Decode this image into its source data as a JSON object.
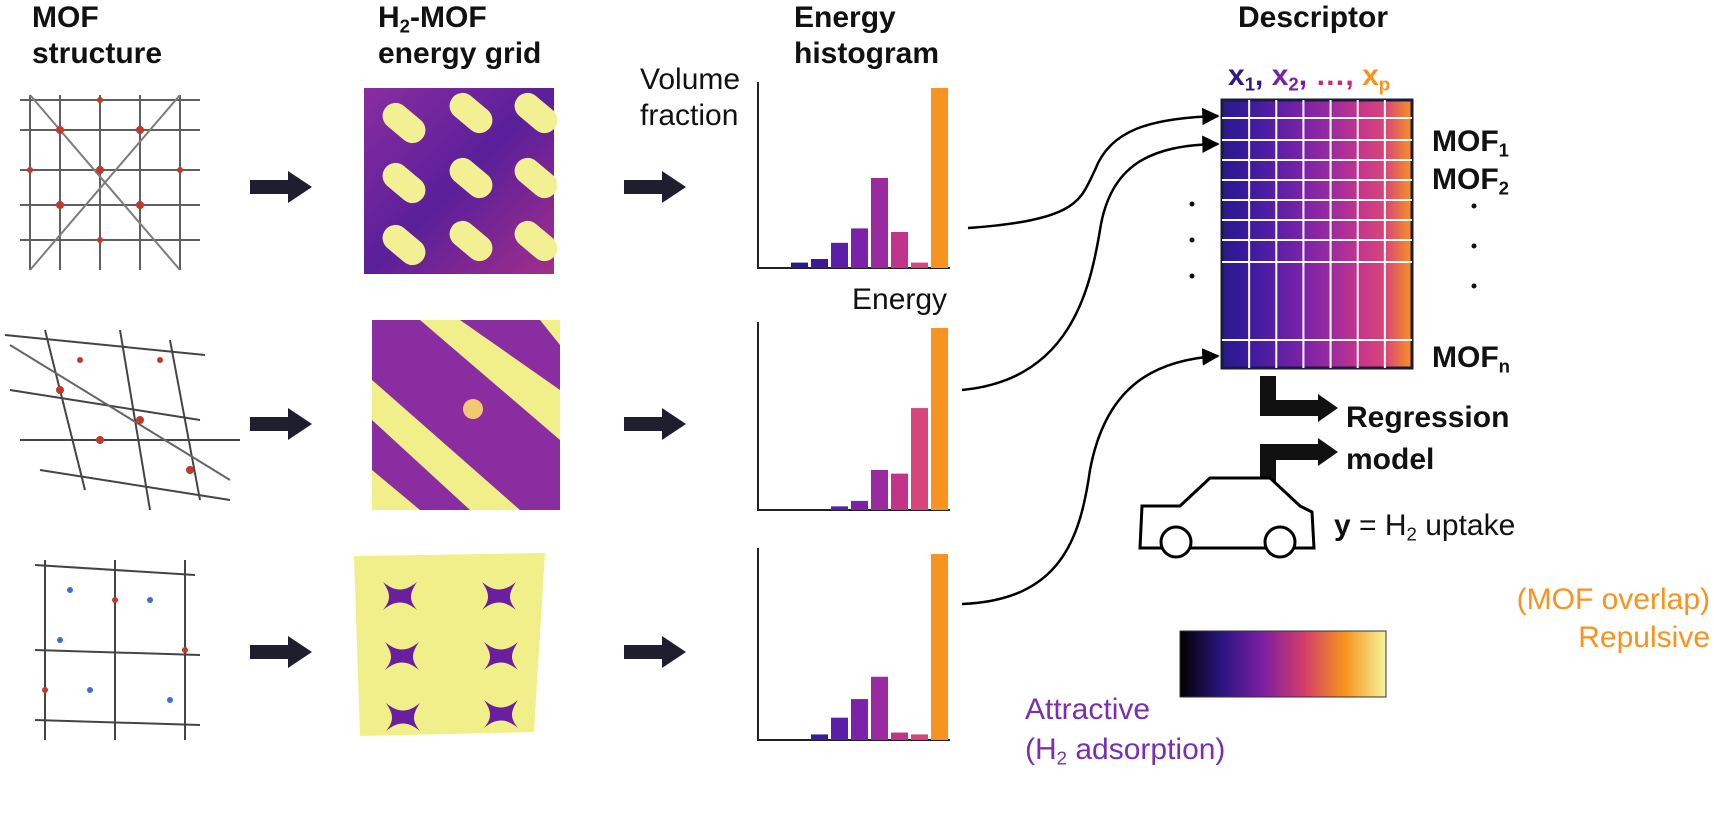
{
  "columns": {
    "mof_structure": [
      "MOF",
      "structure"
    ],
    "energy_grid": [
      "H",
      "2",
      "-MOF",
      "energy grid"
    ],
    "histogram": [
      "Energy",
      "histogram"
    ],
    "descriptor": "Descriptor"
  },
  "histogram_axes": {
    "ylabel": [
      "Volume",
      "fraction"
    ],
    "xlabel": "Energy"
  },
  "features": [
    {
      "base": "x",
      "sub": "1",
      "sep": ",",
      "color": "#2a1a8c"
    },
    {
      "base": "x",
      "sub": "2",
      "sep": ",",
      "color": "#7a20a8"
    },
    {
      "base": "…",
      "sub": "",
      "sep": ",",
      "color": "#c8287a"
    },
    {
      "base": "x",
      "sub": "p",
      "sep": "",
      "color": "#f7931e"
    }
  ],
  "mof_rows": [
    {
      "base": "MOF",
      "sub": "1"
    },
    {
      "base": "MOF",
      "sub": "2"
    },
    {
      "base": "MOF",
      "sub": "n"
    }
  ],
  "regression": [
    "Regression",
    "model"
  ],
  "car_label": {
    "base": "H",
    "sub": "2"
  },
  "target": {
    "bold": "y",
    "text": " = H",
    "sub": "2",
    "tail": " uptake"
  },
  "colorbar": {
    "top_left": "(MOF overlap)",
    "top_right": "Repulsive",
    "bottom_left": "Attractive",
    "bottom_right": [
      "(H",
      "2",
      " adsorption)"
    ],
    "colors": [
      "#000000",
      "#2a1580",
      "#7b1fa2",
      "#d23c6a",
      "#f7931e",
      "#f5f59a"
    ]
  },
  "histograms": [
    {
      "values": [
        0.03,
        0.05,
        0.14,
        0.22,
        0.5,
        0.2,
        0.03,
        1.0
      ]
    },
    {
      "values": [
        0.0,
        0.02,
        0.05,
        0.22,
        0.2,
        0.56,
        1.0
      ]
    },
    {
      "values": [
        0.0,
        0.03,
        0.12,
        0.22,
        0.34,
        0.04,
        0.03,
        1.0
      ]
    }
  ],
  "bar_colors": [
    "#2a1a8c",
    "#3b1a9c",
    "#5a1fa6",
    "#7b22a8",
    "#9a2aa0",
    "#c2348a",
    "#d8457a",
    "#f7931e"
  ],
  "arrow_color": "#1e1e2e"
}
